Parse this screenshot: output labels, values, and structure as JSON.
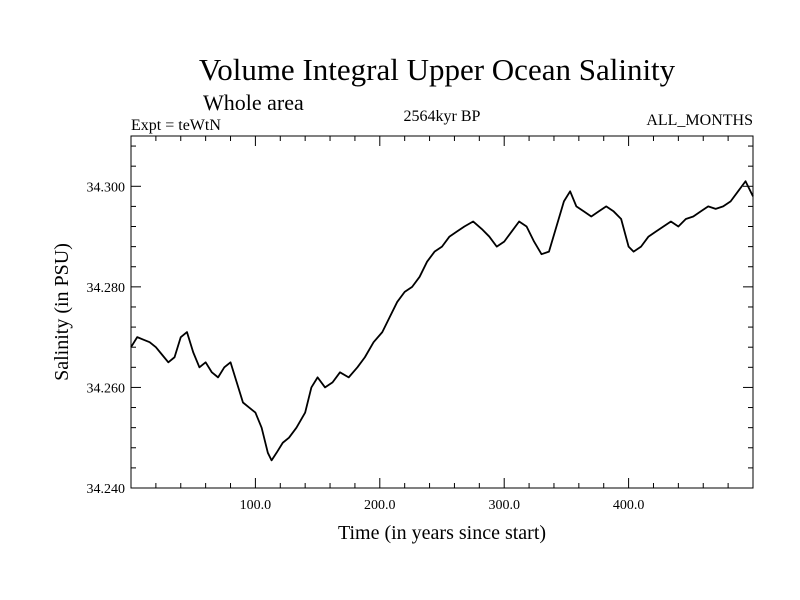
{
  "chart_data": {
    "type": "line",
    "title": "Volume Integral Upper Ocean Salinity",
    "subtitle": "Whole area",
    "left_label": "Expt = teWtN",
    "center_label": "2564kyr BP",
    "right_label": "ALL_MONTHS",
    "xlabel": "Time (in years since start)",
    "ylabel": "Salinity (in PSU)",
    "xlim": [
      0,
      500
    ],
    "ylim": [
      34.24,
      34.31
    ],
    "xticks": [
      100,
      200,
      300,
      400
    ],
    "xtick_labels": [
      "100.0",
      "200.0",
      "300.0",
      "400.0"
    ],
    "yticks": [
      34.24,
      34.26,
      34.28,
      34.3
    ],
    "ytick_labels": [
      "34.240",
      "34.260",
      "34.280",
      "34.300"
    ],
    "grid": false,
    "series": [
      {
        "name": "Salinity",
        "color": "#000000",
        "x": [
          0,
          5,
          10,
          15,
          20,
          25,
          30,
          35,
          40,
          45,
          50,
          55,
          60,
          65,
          70,
          75,
          80,
          85,
          90,
          95,
          100,
          105,
          110,
          113,
          117,
          122,
          127,
          133,
          140,
          145,
          150,
          156,
          162,
          168,
          175,
          182,
          188,
          195,
          202,
          208,
          214,
          220,
          226,
          232,
          238,
          244,
          250,
          256,
          262,
          268,
          275,
          282,
          288,
          294,
          300,
          306,
          312,
          318,
          324,
          330,
          336,
          342,
          348,
          353,
          358,
          364,
          370,
          376,
          382,
          388,
          394,
          400,
          404,
          410,
          416,
          422,
          428,
          434,
          440,
          446,
          452,
          458,
          464,
          470,
          476,
          482,
          488,
          494,
          500
        ],
        "values": [
          34.268,
          34.27,
          34.2695,
          34.269,
          34.268,
          34.2665,
          34.265,
          34.266,
          34.27,
          34.271,
          34.267,
          34.264,
          34.265,
          34.263,
          34.262,
          34.264,
          34.265,
          34.261,
          34.257,
          34.256,
          34.255,
          34.252,
          34.247,
          34.2455,
          34.247,
          34.249,
          34.25,
          34.252,
          34.255,
          34.26,
          34.262,
          34.26,
          34.261,
          34.263,
          34.262,
          34.264,
          34.266,
          34.269,
          34.271,
          34.274,
          34.277,
          34.279,
          34.28,
          34.282,
          34.285,
          34.287,
          34.288,
          34.29,
          34.291,
          34.292,
          34.293,
          34.2915,
          34.29,
          34.288,
          34.289,
          34.291,
          34.293,
          34.292,
          34.289,
          34.2865,
          34.287,
          34.292,
          34.297,
          34.299,
          34.296,
          34.295,
          34.294,
          34.295,
          34.296,
          34.295,
          34.2935,
          34.288,
          34.287,
          34.288,
          34.29,
          34.291,
          34.292,
          34.293,
          34.292,
          34.2935,
          34.294,
          34.295,
          34.296,
          34.2955,
          34.296,
          34.297,
          34.299,
          34.301,
          34.298
        ]
      }
    ]
  }
}
